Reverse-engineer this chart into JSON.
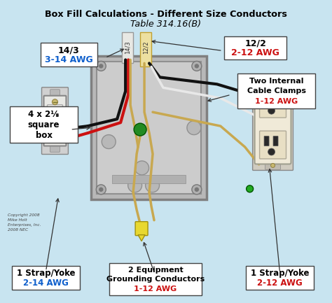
{
  "title_line1": "Box Fill Calculations - Different Size Conductors",
  "title_line2": "Table 314.16(B)",
  "bg_color": "#c8e4f0",
  "box_face_color": "#b8b8b8",
  "box_inner_color": "#cccccc",
  "box_edge_color": "#808080",
  "cable143_color": "#f0f0ee",
  "cable122_color": "#f0e8b0",
  "wire_black": "#111111",
  "wire_red": "#cc1111",
  "wire_bare": "#c8a850",
  "wire_white": "#e8e8e8",
  "green_dot": "#228B22",
  "yellow_lug": "#e8d830",
  "switch_color": "#e0e0e0",
  "outlet_color": "#f0ead8",
  "label_blue": "#1060cc",
  "label_red": "#cc1111",
  "copyright": "Copyright 2008\nMike Holt\nEnterprises, Inc.\n2008 NEC"
}
